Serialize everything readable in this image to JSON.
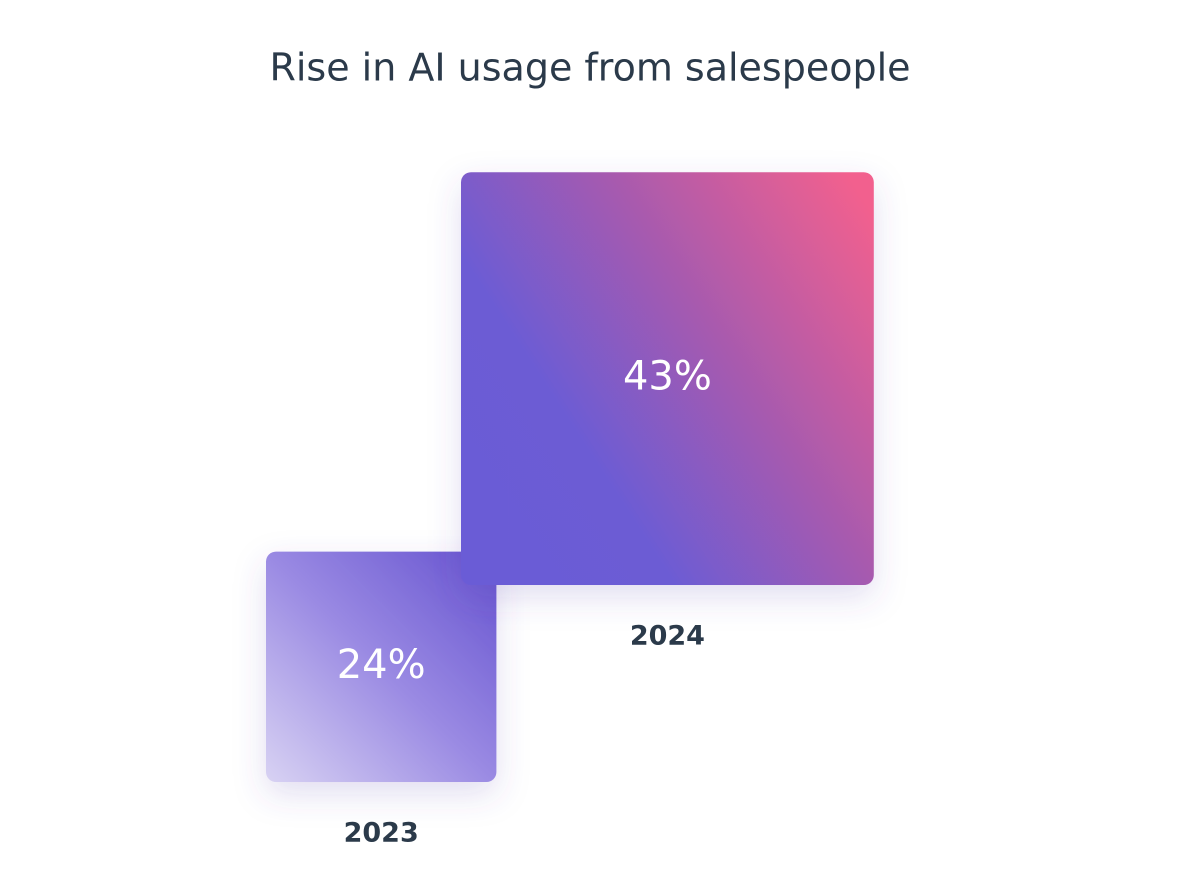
{
  "chart_data": {
    "type": "square",
    "title": "Rise in AI usage from salespeople",
    "categories": [
      "2023",
      "2024"
    ],
    "values": [
      24,
      43
    ],
    "value_labels": [
      "24%",
      "43%"
    ]
  }
}
